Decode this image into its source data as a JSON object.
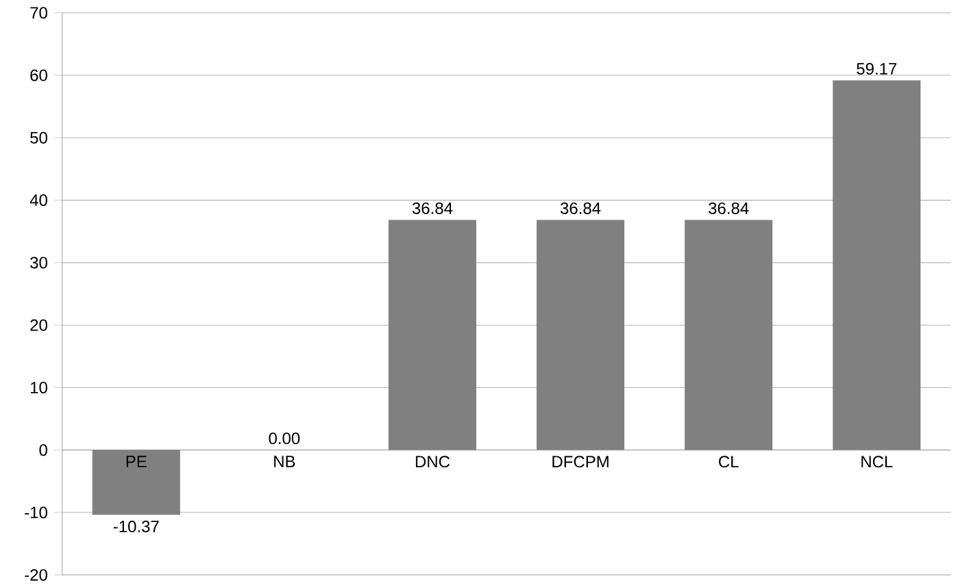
{
  "chart_data": {
    "type": "bar",
    "categories": [
      "PE",
      "NB",
      "DNC",
      "DFCPM",
      "CL",
      "NCL"
    ],
    "values": [
      -10.37,
      0.0,
      36.84,
      36.84,
      36.84,
      59.17
    ],
    "value_labels": [
      "-10.37",
      "0.00",
      "36.84",
      "36.84",
      "36.84",
      "59.17"
    ],
    "color": "#808080",
    "ylim": [
      -20,
      70
    ],
    "yticks": [
      -20,
      -10,
      0,
      10,
      20,
      30,
      40,
      50,
      60,
      70
    ],
    "grid": "y"
  }
}
